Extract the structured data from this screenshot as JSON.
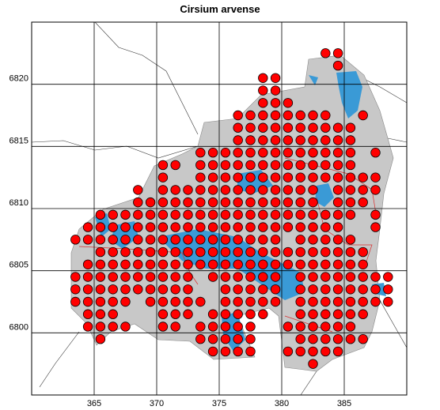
{
  "map": {
    "title": "Cirsium arvense",
    "xlim": [
      360,
      390
    ],
    "ylim": [
      6795,
      6825
    ],
    "xticks": [
      365,
      370,
      375,
      380,
      385
    ],
    "yticks": [
      6800,
      6805,
      6810,
      6815,
      6820
    ],
    "dot_color": "#ff0000",
    "rows": [
      {
        "y": 6822.5,
        "x": [
          383.5,
          384.5
        ]
      },
      {
        "y": 6821.5,
        "x": [
          384.5
        ]
      },
      {
        "y": 6820.5,
        "x": [
          378.5,
          379.5
        ]
      },
      {
        "y": 6819.5,
        "x": [
          378.5,
          379.5
        ]
      },
      {
        "y": 6818.5,
        "x": [
          378.5,
          379.5,
          380.5
        ]
      },
      {
        "y": 6817.5,
        "x": [
          376.5,
          377.5,
          378.5,
          379.5,
          380.5,
          381.5,
          382.5,
          383.5,
          386.5
        ]
      },
      {
        "y": 6816.5,
        "x": [
          376.5,
          377.5,
          378.5,
          379.5,
          380.5,
          381.5,
          382.5,
          383.5,
          384.5,
          385.5
        ]
      },
      {
        "y": 6815.5,
        "x": [
          376.5,
          377.5,
          378.5,
          379.5,
          380.5,
          381.5,
          382.5,
          383.5,
          384.5,
          385.5
        ]
      },
      {
        "y": 6814.5,
        "x": [
          373.5,
          374.5,
          375.5,
          376.5,
          377.5,
          378.5,
          379.5,
          380.5,
          381.5,
          382.5,
          383.5,
          384.5,
          385.5,
          387.5
        ]
      },
      {
        "y": 6813.5,
        "x": [
          370.5,
          371.5,
          373.5,
          374.5,
          375.5,
          376.5,
          377.5,
          378.5,
          379.5,
          380.5,
          381.5,
          382.5,
          383.5,
          384.5,
          385.5
        ]
      },
      {
        "y": 6812.5,
        "x": [
          370.5,
          373.5,
          374.5,
          375.5,
          376.5,
          377.5,
          378.5,
          379.5,
          380.5,
          381.5,
          382.5,
          383.5,
          384.5,
          385.5,
          386.5,
          387.5
        ]
      },
      {
        "y": 6811.5,
        "x": [
          368.5,
          370.5,
          371.5,
          372.5,
          373.5,
          374.5,
          375.5,
          376.5,
          377.5,
          378.5,
          379.5,
          380.5,
          381.5,
          382.5,
          384.5,
          385.5,
          386.5,
          387.5
        ]
      },
      {
        "y": 6810.5,
        "x": [
          368.5,
          369.5,
          370.5,
          371.5,
          372.5,
          373.5,
          374.5,
          375.5,
          376.5,
          377.5,
          378.5,
          379.5,
          380.5,
          381.5,
          382.5,
          384.5,
          385.5,
          386.5
        ]
      },
      {
        "y": 6809.5,
        "x": [
          365.5,
          366.5,
          367.5,
          368.5,
          369.5,
          370.5,
          371.5,
          372.5,
          373.5,
          374.5,
          375.5,
          376.5,
          377.5,
          378.5,
          379.5,
          380.5,
          381.5,
          382.5,
          383.5,
          384.5,
          385.5,
          387.5
        ]
      },
      {
        "y": 6808.5,
        "x": [
          364.5,
          365.5,
          366.5,
          367.5,
          368.5,
          369.5,
          370.5,
          371.5,
          372.5,
          373.5,
          374.5,
          375.5,
          376.5,
          377.5,
          378.5,
          379.5,
          380.5,
          381.5,
          382.5,
          383.5,
          384.5,
          387.5
        ]
      },
      {
        "y": 6807.5,
        "x": [
          363.5,
          364.5,
          365.5,
          366.5,
          367.5,
          368.5,
          369.5,
          370.5,
          371.5,
          372.5,
          373.5,
          374.5,
          375.5,
          376.5,
          377.5,
          378.5,
          379.5,
          381.5,
          382.5,
          383.5,
          384.5,
          385.5
        ]
      },
      {
        "y": 6806.5,
        "x": [
          365.5,
          366.5,
          367.5,
          368.5,
          369.5,
          370.5,
          371.5,
          372.5,
          373.5,
          374.5,
          375.5,
          376.5,
          377.5,
          378.5,
          379.5,
          380.5,
          381.5,
          382.5,
          383.5,
          384.5,
          385.5,
          386.5
        ]
      },
      {
        "y": 6805.5,
        "x": [
          364.5,
          365.5,
          366.5,
          367.5,
          368.5,
          369.5,
          370.5,
          371.5,
          372.5,
          373.5,
          374.5,
          375.5,
          376.5,
          377.5,
          378.5,
          379.5,
          380.5,
          381.5,
          382.5,
          383.5,
          384.5,
          385.5,
          386.5
        ]
      },
      {
        "y": 6804.5,
        "x": [
          363.5,
          364.5,
          365.5,
          366.5,
          367.5,
          368.5,
          369.5,
          370.5,
          371.5,
          372.5,
          374.5,
          375.5,
          376.5,
          377.5,
          378.5,
          379.5,
          381.5,
          382.5,
          383.5,
          384.5,
          385.5,
          386.5,
          387.5,
          388.5
        ]
      },
      {
        "y": 6803.5,
        "x": [
          363.5,
          364.5,
          365.5,
          366.5,
          367.5,
          368.5,
          369.5,
          370.5,
          371.5,
          372.5,
          375.5,
          376.5,
          377.5,
          378.5,
          379.5,
          381.5,
          382.5,
          383.5,
          384.5,
          385.5,
          386.5,
          387.5,
          388.5
        ]
      },
      {
        "y": 6802.5,
        "x": [
          363.5,
          364.5,
          365.5,
          366.5,
          367.5,
          369.5,
          370.5,
          371.5,
          372.5,
          373.5,
          375.5,
          376.5,
          377.5,
          378.5,
          379.5,
          381.5,
          382.5,
          383.5,
          384.5,
          385.5,
          386.5,
          387.5,
          388.5
        ]
      },
      {
        "y": 6801.5,
        "x": [
          364.5,
          365.5,
          366.5,
          370.5,
          371.5,
          372.5,
          374.5,
          375.5,
          376.5,
          377.5,
          378.5,
          381.5,
          382.5,
          383.5,
          384.5,
          385.5,
          386.5
        ]
      },
      {
        "y": 6800.5,
        "x": [
          364.5,
          365.5,
          366.5,
          367.5,
          370.5,
          371.5,
          373.5,
          374.5,
          375.5,
          376.5,
          377.5,
          380.5,
          381.5,
          382.5,
          383.5,
          384.5,
          385.5
        ]
      },
      {
        "y": 6799.5,
        "x": [
          365.5,
          373.5,
          374.5,
          375.5,
          376.5,
          377.5,
          381.5,
          382.5,
          383.5,
          384.5,
          385.5,
          386.5
        ]
      },
      {
        "y": 6798.5,
        "x": [
          374.5,
          375.5,
          376.5,
          377.5,
          380.5,
          381.5,
          382.5,
          383.5,
          384.5
        ]
      },
      {
        "y": 6797.5,
        "x": [
          382.5
        ]
      }
    ]
  }
}
